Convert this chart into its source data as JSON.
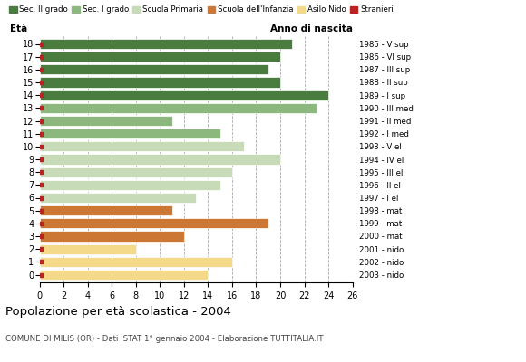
{
  "ages": [
    18,
    17,
    16,
    15,
    14,
    13,
    12,
    11,
    10,
    9,
    8,
    7,
    6,
    5,
    4,
    3,
    2,
    1,
    0
  ],
  "values": [
    21,
    20,
    19,
    20,
    24,
    23,
    11,
    15,
    17,
    20,
    16,
    15,
    13,
    11,
    19,
    12,
    8,
    16,
    14
  ],
  "colors": [
    "#4a7c3f",
    "#4a7c3f",
    "#4a7c3f",
    "#4a7c3f",
    "#4a7c3f",
    "#8cb87e",
    "#8cb87e",
    "#8cb87e",
    "#c8dbb8",
    "#c8dbb8",
    "#c8dbb8",
    "#c8dbb8",
    "#c8dbb8",
    "#cc7733",
    "#cc7733",
    "#cc7733",
    "#f5d98b",
    "#f5d98b",
    "#f5d98b"
  ],
  "right_labels": [
    "1985 - V sup",
    "1986 - VI sup",
    "1987 - III sup",
    "1988 - II sup",
    "1989 - I sup",
    "1990 - III med",
    "1991 - II med",
    "1992 - I med",
    "1993 - V el",
    "1994 - IV el",
    "1995 - III el",
    "1996 - II el",
    "1997 - I el",
    "1998 - mat",
    "1999 - mat",
    "2000 - mat",
    "2001 - nido",
    "2002 - nido",
    "2003 - nido"
  ],
  "stranieri_color": "#bb2222",
  "legend_items": [
    {
      "label": "Sec. II grado",
      "color": "#4a7c3f"
    },
    {
      "label": "Sec. I grado",
      "color": "#8cb87e"
    },
    {
      "label": "Scuola Primaria",
      "color": "#c8dbb8"
    },
    {
      "label": "Scuola dell'Infanzia",
      "color": "#cc7733"
    },
    {
      "label": "Asilo Nido",
      "color": "#f5d98b"
    },
    {
      "label": "Stranieri",
      "color": "#bb2222"
    }
  ],
  "xlabel_left": "Età",
  "xlabel_right": "Anno di nascita",
  "title": "Popolazione per età scolastica - 2004",
  "subtitle": "COMUNE DI MILIS (OR) - Dati ISTAT 1° gennaio 2004 - Elaborazione TUTTITALIA.IT",
  "xlim": [
    0,
    26
  ],
  "xticks": [
    0,
    2,
    4,
    6,
    8,
    10,
    12,
    14,
    16,
    18,
    20,
    22,
    24,
    26
  ],
  "background_color": "#ffffff",
  "grid_color": "#aaaaaa",
  "bar_height": 0.78
}
